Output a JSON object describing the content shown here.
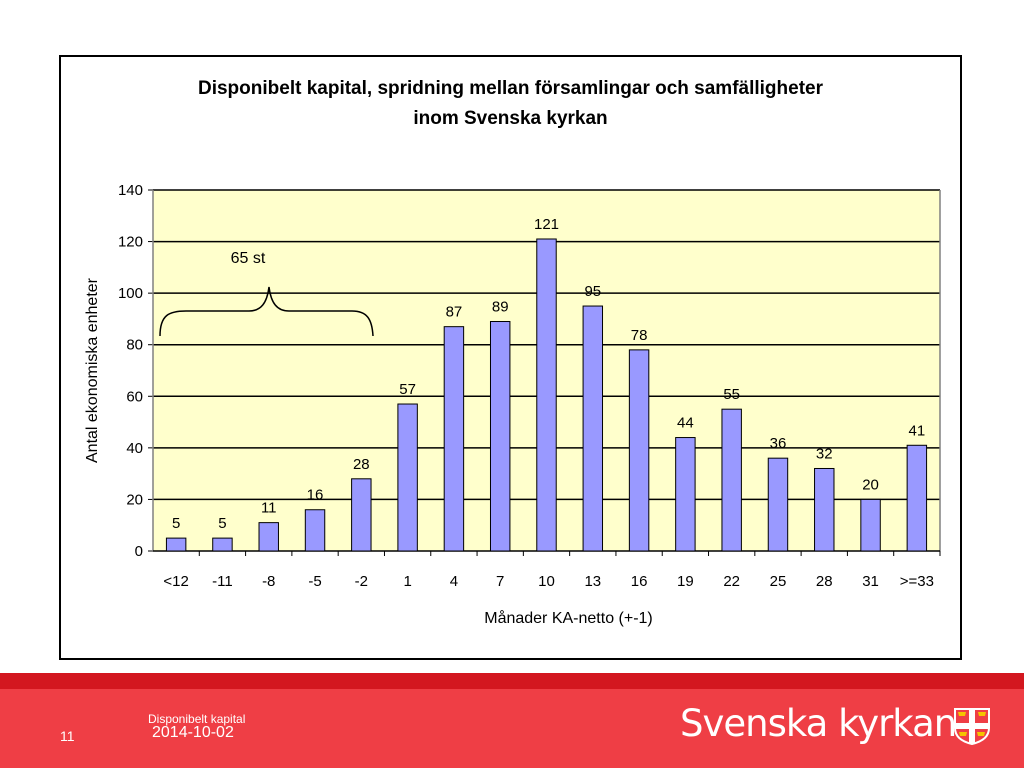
{
  "chart_data": {
    "type": "bar",
    "title": "Disponibelt kapital, spridning mellan församlingar och samfälligheter inom Svenska kyrkan",
    "title_lines": [
      "Disponibelt kapital, spridning mellan församlingar och samfälligheter",
      "inom Svenska kyrkan"
    ],
    "xlabel": "Månader KA-netto (+-1)",
    "ylabel": "Antal ekonomiska enheter",
    "categories": [
      "<12",
      "-11",
      "-8",
      "-5",
      "-2",
      "1",
      "4",
      "7",
      "10",
      "13",
      "16",
      "19",
      "22",
      "25",
      "28",
      "31",
      ">=33"
    ],
    "values": [
      5,
      5,
      11,
      16,
      28,
      57,
      87,
      89,
      121,
      95,
      78,
      44,
      55,
      36,
      32,
      20,
      41
    ],
    "ylim": [
      0,
      140
    ],
    "yticks": [
      0,
      20,
      40,
      60,
      80,
      100,
      120,
      140
    ],
    "grid": true,
    "annotation": "65 st",
    "colors": {
      "bar": "#9999ff",
      "plot_bg": "#ffffcc",
      "grid": "#000000"
    }
  },
  "footer": {
    "page_number": "11",
    "subtitle": "Disponibelt kapital",
    "date": "2014-10-02",
    "brand": "Svenska kyrkan",
    "colors": {
      "bar": "#ef3e45",
      "stripe": "#d3171f",
      "logo_gold": "#f5c400"
    }
  }
}
